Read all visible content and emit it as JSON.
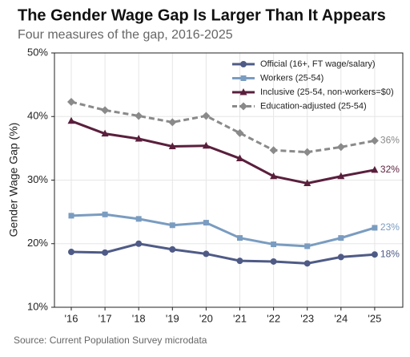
{
  "chart_data": {
    "type": "line",
    "title": "The Gender Wage Gap Is Larger Than It Appears",
    "subtitle": "Four measures of the gap, 2016-2025",
    "y_label": "Gender Wage Gap (%)",
    "source": "Source: Current Population Survey microdata",
    "categories": [
      "'16",
      "'17",
      "'18",
      "'19",
      "'20",
      "'21",
      "'22",
      "'23",
      "'24",
      "'25"
    ],
    "series": [
      {
        "name": "Official (16+, FT wage/salary)",
        "color": "#4f5b86",
        "marker": "circle",
        "dashed": false,
        "values": [
          18.7,
          18.6,
          20.0,
          19.1,
          18.4,
          17.3,
          17.2,
          16.9,
          17.9,
          18.3
        ],
        "value_labels": [
          null,
          null,
          null,
          null,
          null,
          null,
          null,
          null,
          null,
          "18%"
        ]
      },
      {
        "name": "Workers (25-54)",
        "color": "#7a9cc0",
        "marker": "square",
        "dashed": false,
        "values": [
          24.4,
          24.6,
          23.9,
          22.9,
          23.3,
          20.9,
          19.9,
          19.6,
          20.9,
          22.5
        ],
        "value_labels": [
          null,
          null,
          null,
          null,
          null,
          null,
          null,
          null,
          null,
          "23%"
        ]
      },
      {
        "name": "Inclusive (25-54, non-workers=$0)",
        "color": "#5a1f3c",
        "marker": "triangle",
        "dashed": false,
        "values": [
          39.3,
          37.3,
          36.5,
          35.3,
          35.4,
          33.4,
          30.6,
          29.5,
          30.6,
          31.6
        ],
        "value_labels": [
          null,
          null,
          null,
          null,
          null,
          null,
          null,
          null,
          null,
          "32%"
        ]
      },
      {
        "name": "Education-adjusted (25-54)",
        "color": "#8a8a8a",
        "marker": "diamond",
        "dashed": true,
        "values": [
          42.3,
          41.0,
          40.1,
          39.1,
          40.1,
          37.4,
          34.7,
          34.4,
          35.2,
          36.2
        ],
        "value_labels": [
          null,
          null,
          null,
          null,
          null,
          null,
          null,
          null,
          null,
          "36%"
        ]
      }
    ],
    "ylim": [
      10,
      50
    ],
    "yticks": [
      {
        "value": 10,
        "label": "10%"
      },
      {
        "value": 20,
        "label": "20%"
      },
      {
        "value": 30,
        "label": "30%"
      },
      {
        "value": 40,
        "label": "40%"
      },
      {
        "value": 50,
        "label": "50%"
      }
    ],
    "grid": true,
    "legend": "upper right"
  }
}
